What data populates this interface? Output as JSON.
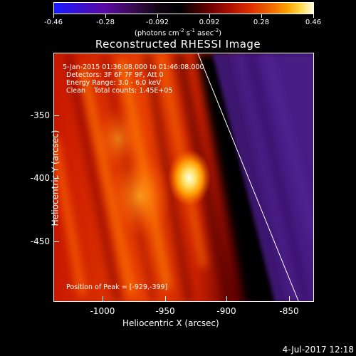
{
  "colorbar": {
    "ticks": [
      "-0.46",
      "-0.28",
      "-0.092",
      "0.092",
      "0.28",
      "0.46"
    ],
    "units_main": "(photons cm",
    "units_exp1": "-2",
    "units_mid": " s",
    "units_exp2": "-1",
    "units_after": " asec",
    "units_exp3": "-2",
    "units_end": ")"
  },
  "title": "Reconstructed RHESSI Image",
  "info": {
    "time_range": "5-Jan-2015 01:36:08.000 to 01:46:08.000",
    "detectors": "Detectors: 3F 6F 7F 9F, Att 0",
    "energy": "Energy Range: 3.0 - 6.0 keV",
    "clean": "Clean    Total counts: 1.45E+05",
    "peak": "Position of Peak = [-929,-399]"
  },
  "axes": {
    "xlabel": "Heliocentric X (arcsec)",
    "ylabel": "Heliocentric Y (arcsec)",
    "xticks": [
      "-1000",
      "-950",
      "-900",
      "-850"
    ],
    "yticks": [
      "-350",
      "-400",
      "-450"
    ]
  },
  "footer": "4-Jul-2017 12:18"
}
